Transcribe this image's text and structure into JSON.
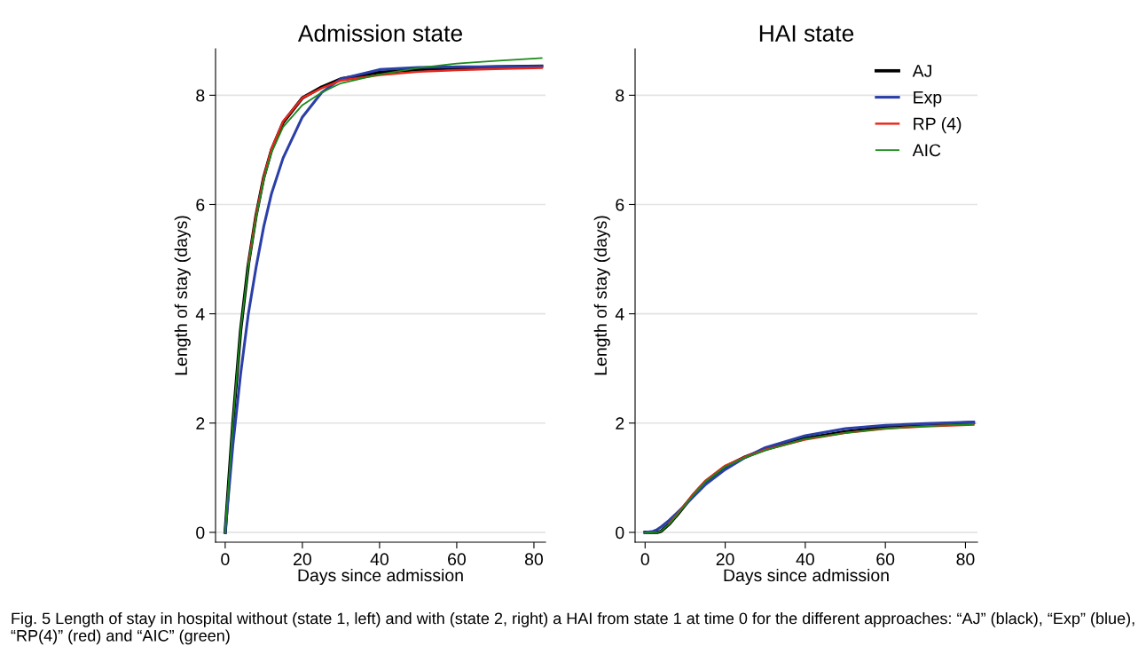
{
  "chart_data": [
    {
      "type": "line",
      "title": "Admission state",
      "xlabel": "Days since admission",
      "ylabel": "Length of stay (days)",
      "x": [
        0,
        2,
        4,
        6,
        8,
        10,
        12,
        15,
        20,
        25,
        30,
        40,
        50,
        60,
        70,
        82
      ],
      "xlim": [
        -2.5,
        83
      ],
      "ylim": [
        -0.18,
        8.85
      ],
      "xticks": [
        0,
        20,
        40,
        60,
        80
      ],
      "yticks": [
        0,
        2,
        4,
        6,
        8
      ],
      "grid": "y",
      "legend": false,
      "series": [
        {
          "color": "#000000",
          "values": [
            0,
            2.0,
            3.7,
            4.9,
            5.8,
            6.5,
            7.0,
            7.5,
            7.95,
            8.15,
            8.3,
            8.42,
            8.47,
            8.5,
            8.52,
            8.53
          ]
        },
        {
          "color": "#2b3fa8",
          "values": [
            0,
            1.6,
            2.9,
            4.0,
            4.85,
            5.6,
            6.2,
            6.85,
            7.6,
            8.05,
            8.3,
            8.47,
            8.51,
            8.52,
            8.52,
            8.53
          ]
        },
        {
          "color": "#e8271c",
          "values": [
            null,
            null,
            null,
            4.9,
            5.8,
            6.5,
            7.02,
            7.52,
            7.95,
            8.13,
            8.27,
            8.37,
            8.43,
            8.46,
            8.48,
            8.5
          ]
        },
        {
          "color": "#1a8a1a",
          "values": [
            0,
            2.0,
            3.7,
            4.88,
            5.75,
            6.45,
            6.95,
            7.42,
            7.82,
            8.05,
            8.22,
            8.38,
            8.5,
            8.58,
            8.63,
            8.68
          ]
        }
      ]
    },
    {
      "type": "line",
      "title": "HAI state",
      "xlabel": "Days since admission",
      "ylabel": "Length of stay (days)",
      "x": [
        0,
        2,
        3,
        4,
        6,
        8,
        10,
        12,
        15,
        20,
        25,
        30,
        40,
        50,
        60,
        70,
        82
      ],
      "xlim": [
        -2.5,
        83
      ],
      "ylim": [
        -0.18,
        8.85
      ],
      "xticks": [
        0,
        20,
        40,
        60,
        80
      ],
      "yticks": [
        0,
        2,
        4,
        6,
        8
      ],
      "grid": "y",
      "legend": "top right",
      "series": [
        {
          "name": "AJ",
          "color": "#000000",
          "values": [
            0,
            0,
            0,
            0.02,
            0.15,
            0.32,
            0.5,
            0.68,
            0.92,
            1.2,
            1.38,
            1.52,
            1.72,
            1.84,
            1.92,
            1.97,
            2.01
          ]
        },
        {
          "name": "Exp",
          "color": "#2b3fa8",
          "values": [
            0,
            0.02,
            0.05,
            0.1,
            0.22,
            0.36,
            0.5,
            0.65,
            0.87,
            1.15,
            1.37,
            1.55,
            1.77,
            1.9,
            1.96,
            1.99,
            2.02
          ]
        },
        {
          "name": "RP (4)",
          "color": "#e8271c",
          "values": [
            null,
            null,
            null,
            null,
            0.16,
            0.33,
            0.51,
            0.7,
            0.94,
            1.22,
            1.38,
            1.51,
            1.7,
            1.82,
            1.9,
            1.94,
            1.97
          ]
        },
        {
          "name": "AIC",
          "color": "#1a8a1a",
          "values": [
            0,
            0,
            0,
            0.02,
            0.15,
            0.32,
            0.5,
            0.68,
            0.92,
            1.2,
            1.37,
            1.5,
            1.71,
            1.82,
            1.9,
            1.94,
            1.98
          ]
        }
      ],
      "annotations": [
        "Fig. 5 Length of stay in hospital without (state 1, left) and with (state 2, right) a HAI from state 1 at time 0 for the different approaches: “AJ” (black), “Exp” (blue), “RP(4)” (red) and “AIC” (green)"
      ]
    }
  ]
}
